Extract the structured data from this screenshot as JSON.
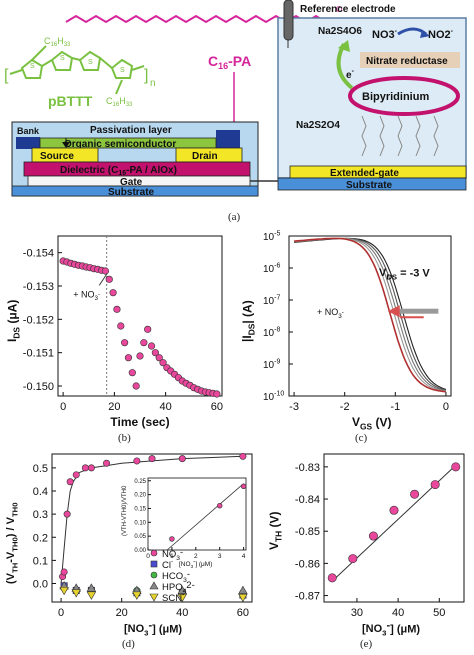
{
  "captions": {
    "a": "(a)",
    "b": "(b)",
    "c": "(c)",
    "d": "(d)",
    "e": "(e)"
  },
  "schematic": {
    "polymer_label": "pBTTT",
    "polymer_n": "n",
    "side_chain_top": "C",
    "side_chain_top_sub": "16",
    "side_chain_top_suffix": "H",
    "side_chain_top_sub2": "33",
    "side_chain_bottom": "C",
    "side_chain_bottom_sub": "16",
    "side_chain_bottom_suffix": "H",
    "side_chain_bottom_sub2": "33",
    "sam_label_main": "C",
    "sam_label_sub": "16",
    "sam_label_suffix": "-PA",
    "phosphonic_P": "P",
    "phosphonic_O": "O",
    "phosphonic_OH1": "OH",
    "phosphonic_OH2": "OH",
    "passivation": "Passivation layer",
    "bank": "Bank",
    "organic": "Organic semiconductor",
    "source": "Source",
    "drain": "Drain",
    "dielectric_pre": "Dielectric (C",
    "dielectric_sub": "16",
    "dielectric_post": "-PA / AlOx)",
    "gate": "Gate",
    "substrate_left": "Substrate",
    "reference_electrode": "Reference electrode",
    "na2s4o6": "Na2S4O6",
    "no3": "NO3",
    "no3_sup": "-",
    "no2": "NO2",
    "no2_sup": "-",
    "nitrate_reductase": "Nitrate reductase",
    "electron": "e",
    "electron_sup": "-",
    "na2s2o4": "Na2S2O4",
    "bipyridinium": "Bipyridinium",
    "extended_gate": "Extended-gate",
    "substrate_right": "Substrate"
  },
  "panel_b": {
    "chart_data": {
      "type": "scatter",
      "xlabel": "Time (sec)",
      "ylabel_main": "I",
      "ylabel_sub": "DS",
      "ylabel_unit": " (μA)",
      "xlim": [
        -2,
        62
      ],
      "ylim": [
        -0.1545,
        -0.1497
      ],
      "xticks": [
        "0",
        "20",
        "40",
        "60"
      ],
      "yticks": [
        "-0.154",
        "-0.153",
        "-0.152",
        "-0.151",
        "-0.150"
      ],
      "marker_color": "#e8479b",
      "annotation": "+ NO",
      "annotation_sub": "3",
      "annotation_sup": "-",
      "injection_time": 17,
      "x": [
        0,
        1.5,
        3,
        4.5,
        6,
        7.5,
        9,
        10.5,
        12,
        13.5,
        15,
        16.5,
        18,
        19.5,
        21,
        22.5,
        24,
        25.5,
        27,
        28.5,
        30,
        31.5,
        33,
        34.5,
        36,
        37.5,
        39,
        40.5,
        42,
        43.5,
        45,
        46.5,
        48,
        49.5,
        51,
        52.5,
        54,
        55.5,
        57,
        58.5,
        60
      ],
      "y": [
        -0.15375,
        -0.15372,
        -0.15368,
        -0.15365,
        -0.15362,
        -0.1536,
        -0.15357,
        -0.15355,
        -0.15352,
        -0.1535,
        -0.15347,
        -0.15345,
        -0.1532,
        -0.1528,
        -0.1523,
        -0.1518,
        -0.1513,
        -0.15085,
        -0.1504,
        -0.15,
        -0.1509,
        -0.1513,
        -0.1517,
        -0.1512,
        -0.151,
        -0.15085,
        -0.1507,
        -0.15055,
        -0.15045,
        -0.15035,
        -0.15025,
        -0.15015,
        -0.15008,
        -0.15002,
        -0.14995,
        -0.1499,
        -0.14985,
        -0.14982,
        -0.1498,
        -0.14978,
        -0.14976
      ]
    }
  },
  "panel_c": {
    "chart_data": {
      "type": "line",
      "xlabel_main": "V",
      "xlabel_sub": "GS",
      "xlabel_unit": " (V)",
      "ylabel_main": "|I",
      "ylabel_sub": "DS",
      "ylabel_unit": "| (A)",
      "xlim": [
        -3.1,
        0.1
      ],
      "ylim_log10": [
        -10,
        -5
      ],
      "xticks": [
        "-3",
        "-2",
        "-1",
        "0"
      ],
      "yticks_base": "10",
      "yticks_exp": [
        "-5",
        "-6",
        "-7",
        "-8",
        "-9",
        "-10"
      ],
      "vds_label_main": "V",
      "vds_label_sub": "DS",
      "vds_label_value": " = -3 V",
      "annotation": "+ NO",
      "annotation_sub": "3",
      "annotation_sup": "-",
      "series_colors": [
        "#222222",
        "#555555",
        "#777777",
        "#999999",
        "#b03030"
      ],
      "shifts": [
        0.0,
        -0.06,
        -0.12,
        -0.18,
        -0.26
      ]
    }
  },
  "panel_d": {
    "chart_data": {
      "type": "scatter",
      "xlabel_main": "[NO",
      "xlabel_sub": "3",
      "xlabel_sup": "-",
      "xlabel_unit": "] (μM)",
      "ylabel": "(VTH-VTH0) / VTH0",
      "ylabel_parts": {
        "a": "(V",
        "a_sub": "TH",
        "b": "-V",
        "b_sub": "TH0",
        "c": ") / V",
        "c_sub": "TH0"
      },
      "xlim": [
        -3,
        63
      ],
      "ylim": [
        -0.08,
        0.56
      ],
      "xticks": [
        "0",
        "20",
        "40",
        "60"
      ],
      "yticks": [
        "0.0",
        "0.1",
        "0.2",
        "0.3",
        "0.4",
        "0.5"
      ],
      "series": [
        {
          "name": "NO3",
          "sub": "3",
          "sup": "-",
          "prefix": "NO",
          "color": "#e8479b",
          "marker": "circle",
          "x": [
            0.5,
            1,
            2,
            3,
            5,
            8,
            10,
            15,
            25,
            30,
            40,
            60
          ],
          "y": [
            0.03,
            0.05,
            0.3,
            0.44,
            0.47,
            0.5,
            0.5,
            0.52,
            0.53,
            0.54,
            0.54,
            0.55
          ]
        },
        {
          "name": "Cl-",
          "prefix": "Cl",
          "sub": "",
          "sup": "-",
          "color": "#4a4acf",
          "marker": "square",
          "x": [
            1,
            5,
            10,
            25,
            40,
            60
          ],
          "y": [
            -0.01,
            -0.03,
            -0.03,
            -0.04,
            -0.04,
            -0.05
          ]
        },
        {
          "name": "HCO3-",
          "prefix": "HCO",
          "sub": "3",
          "sup": "-",
          "color": "#43b843",
          "marker": "circle",
          "x": [
            1,
            5,
            10,
            25,
            40,
            60
          ],
          "y": [
            -0.02,
            -0.03,
            -0.03,
            -0.03,
            -0.04,
            -0.04
          ]
        },
        {
          "name": "HPO4 2-",
          "prefix": "HPO",
          "sub": "4",
          "sup": "2-",
          "color": "#888888",
          "marker": "triangle",
          "x": [
            1,
            5,
            10,
            25,
            40,
            60
          ],
          "y": [
            -0.01,
            -0.02,
            -0.02,
            -0.03,
            -0.03,
            -0.03
          ]
        },
        {
          "name": "SCN-",
          "prefix": "SCN",
          "sub": "",
          "sup": "-",
          "color": "#e6d22e",
          "marker": "triangle-down",
          "x": [
            1,
            5,
            10,
            25,
            40,
            60
          ],
          "y": [
            -0.03,
            -0.04,
            -0.05,
            -0.05,
            -0.06,
            -0.06
          ]
        }
      ],
      "fit_x": [
        0,
        1,
        2,
        3,
        4,
        5,
        6,
        8,
        10,
        15,
        20,
        30,
        40,
        50,
        60
      ],
      "fit_y": [
        0.0,
        0.15,
        0.3,
        0.4,
        0.44,
        0.46,
        0.48,
        0.49,
        0.5,
        0.51,
        0.52,
        0.53,
        0.54,
        0.545,
        0.55
      ],
      "inset": {
        "xlabel": "[NO3-] (μM)",
        "xlabel_parts": {
          "a": "[NO",
          "a_sub": "3",
          "a_sup": "-",
          "b": "] (μM)"
        },
        "ylabel": "(VTH-VTH0)/VTH0",
        "xlim": [
          0,
          4.1
        ],
        "ylim": [
          0,
          0.26
        ],
        "xticks": [
          "0",
          "1",
          "2",
          "3",
          "4"
        ],
        "yticks": [
          "0.00",
          "0.05",
          "0.10",
          "0.15",
          "0.20",
          "0.25"
        ],
        "x": [
          1,
          3,
          4
        ],
        "y": [
          0.04,
          0.16,
          0.23
        ],
        "fit_x": [
          0.8,
          4
        ],
        "fit_y": [
          0.0,
          0.24
        ]
      }
    }
  },
  "panel_e": {
    "chart_data": {
      "type": "scatter",
      "xlabel_main": "[NO",
      "xlabel_sub": "3",
      "xlabel_sup": "-",
      "xlabel_unit": "] (μM)",
      "ylabel_main": "V",
      "ylabel_sub": "TH",
      "ylabel_unit": " (V)",
      "xlim": [
        22,
        56
      ],
      "ylim": [
        -0.872,
        -0.826
      ],
      "xticks": [
        "30",
        "40",
        "50"
      ],
      "yticks": [
        "-0.83",
        "-0.84",
        "-0.85",
        "-0.86",
        "-0.87"
      ],
      "marker_color": "#e8479b",
      "x": [
        24,
        29,
        34,
        39,
        44,
        49,
        54
      ],
      "y": [
        -0.8645,
        -0.8585,
        -0.8515,
        -0.8435,
        -0.8385,
        -0.8355,
        -0.83
      ],
      "fit_x": [
        24,
        54
      ],
      "fit_y": [
        -0.8655,
        -0.8295
      ]
    }
  }
}
